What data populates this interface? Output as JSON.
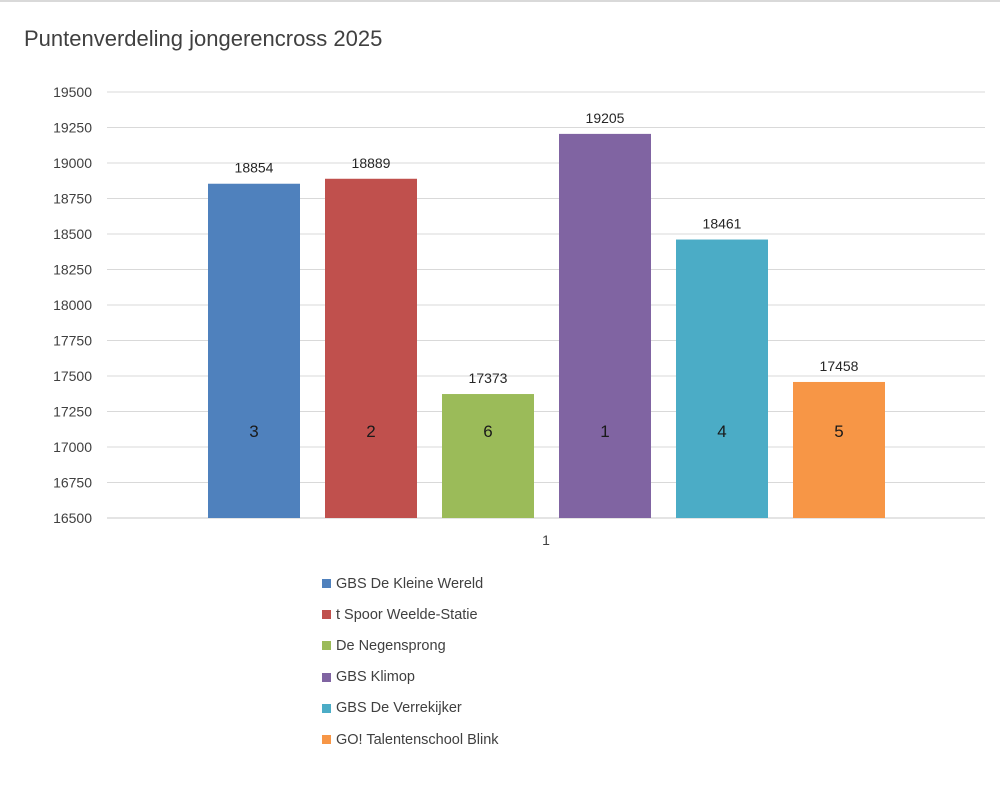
{
  "chart_data": {
    "type": "bar",
    "title": "Puntenverdeling jongerencross 2025",
    "categories": [
      "1"
    ],
    "ylim": [
      16500,
      19500
    ],
    "ytick_step": 250,
    "grid": true,
    "legend_position": "bottom",
    "series": [
      {
        "name": "GBS De Kleine Wereld",
        "values": [
          18854
        ],
        "rank": "3",
        "color": "#4f81bd"
      },
      {
        "name": "t Spoor Weelde-Statie",
        "values": [
          18889
        ],
        "rank": "2",
        "color": "#c0504d"
      },
      {
        "name": "De Negensprong",
        "values": [
          17373
        ],
        "rank": "6",
        "color": "#9bbb59"
      },
      {
        "name": "GBS Klimop",
        "values": [
          19205
        ],
        "rank": "1",
        "color": "#8064a2"
      },
      {
        "name": "GBS De Verrekijker",
        "values": [
          18461
        ],
        "rank": "4",
        "color": "#4bacc6"
      },
      {
        "name": "GO! Talentenschool Blink",
        "values": [
          17458
        ],
        "rank": "5",
        "color": "#f79646"
      }
    ]
  }
}
